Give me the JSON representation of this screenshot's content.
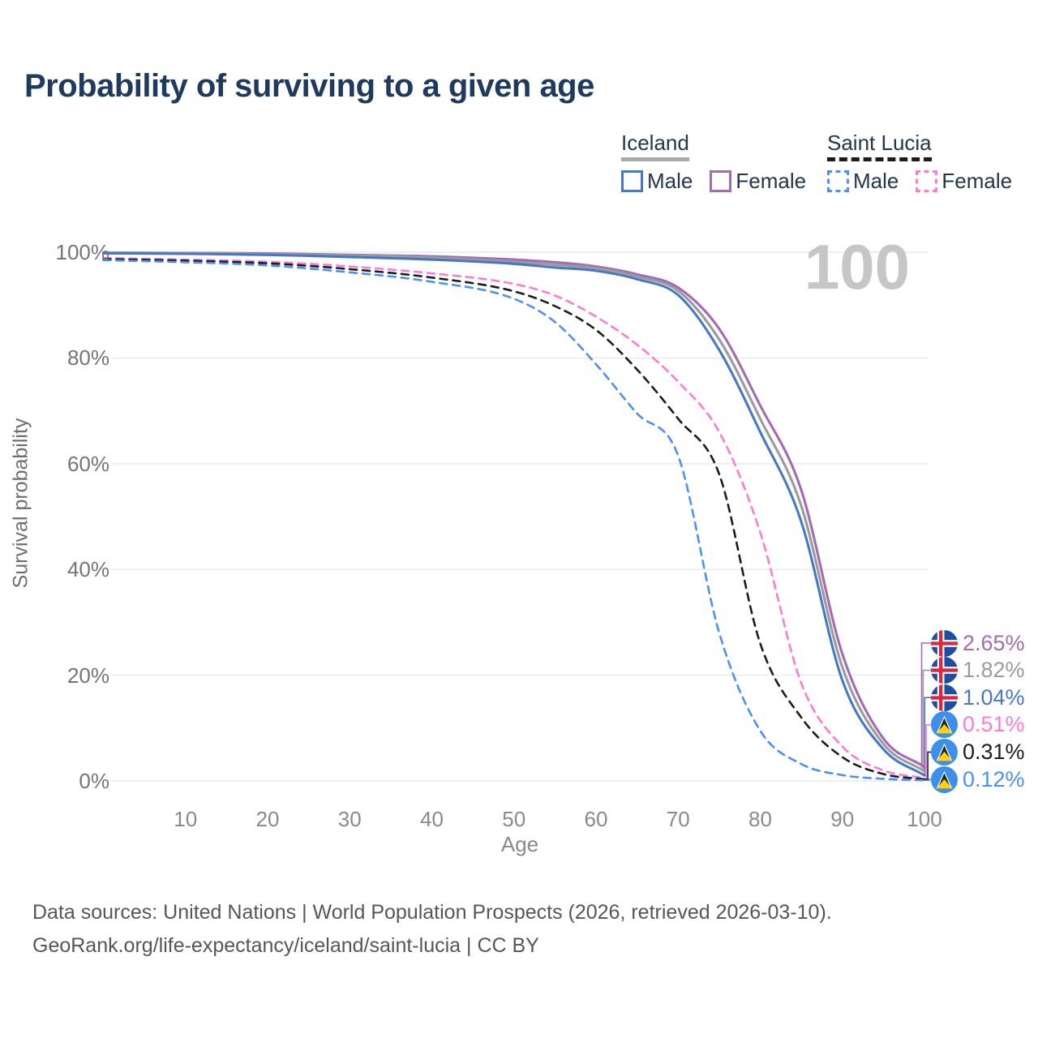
{
  "header": {
    "title": "Probability of surviving to a given age"
  },
  "legend": {
    "groups": [
      {
        "country": "Iceland",
        "style": "solid",
        "key_color": "#a9a9a9",
        "items": [
          {
            "label": "Male",
            "color": "#4678c8"
          },
          {
            "label": "Female",
            "color": "#a56bb2"
          }
        ]
      },
      {
        "country": "Saint Lucia",
        "style": "dashed",
        "key_color": "#1c1c1c",
        "items": [
          {
            "label": "Male",
            "color": "#4a90f5"
          },
          {
            "label": "Female",
            "color": "#ff7ad8"
          }
        ]
      }
    ]
  },
  "chart_data": {
    "type": "line",
    "title": "Probability of surviving to a given age",
    "xlabel": "Age",
    "ylabel": "Survival probability",
    "xlim": [
      0,
      100
    ],
    "ylim": [
      0,
      100
    ],
    "x_ticks": [
      10,
      20,
      30,
      40,
      50,
      60,
      70,
      80,
      90,
      100
    ],
    "y_tick_labels": [
      "0%",
      "20%",
      "40%",
      "60%",
      "80%",
      "100%"
    ],
    "grid": "horizontal",
    "legend_position": "top-right",
    "watermark": "100",
    "x": [
      0,
      10,
      20,
      30,
      40,
      50,
      55,
      60,
      65,
      70,
      75,
      80,
      85,
      90,
      95,
      100
    ],
    "series": [
      {
        "name": "Iceland Female",
        "country": "Iceland",
        "sex": "Female",
        "line": "solid",
        "color": "#a56bb2",
        "flag": "iceland",
        "end_value_label": "2.65%",
        "end_value": 2.65,
        "values": [
          99.9,
          99.85,
          99.75,
          99.5,
          99.2,
          98.6,
          98.1,
          97.3,
          95.8,
          93.3,
          85.5,
          71.0,
          55.0,
          24.0,
          8.0,
          2.65
        ]
      },
      {
        "name": "Iceland",
        "country": "Iceland",
        "sex": "Both sexes",
        "line": "solid",
        "color": "#9b9b9b",
        "flag": "iceland",
        "end_value_label": "1.82%",
        "end_value": 1.82,
        "values": [
          99.9,
          99.8,
          99.65,
          99.35,
          99.0,
          98.2,
          97.6,
          97.0,
          95.4,
          92.7,
          83.5,
          68.5,
          52.0,
          21.5,
          7.0,
          1.82
        ]
      },
      {
        "name": "Iceland Male",
        "country": "Iceland",
        "sex": "Male",
        "line": "solid",
        "color": "#4678c8",
        "flag": "iceland",
        "end_value_label": "1.04%",
        "end_value": 1.04,
        "values": [
          99.8,
          99.7,
          99.5,
          99.1,
          98.6,
          97.8,
          97.1,
          96.5,
          94.9,
          91.9,
          81.5,
          66.0,
          49.0,
          19.0,
          6.0,
          1.04
        ]
      },
      {
        "name": "Saint Lucia Female",
        "country": "Saint Lucia",
        "sex": "Female",
        "line": "dashed",
        "color": "#ff7ad8",
        "flag": "saint-lucia",
        "end_value_label": "0.51%",
        "end_value": 0.51,
        "values": [
          98.9,
          98.6,
          98.2,
          97.3,
          96.0,
          94.0,
          91.8,
          87.8,
          82.5,
          75.5,
          66.0,
          47.0,
          18.5,
          6.5,
          2.0,
          0.51
        ]
      },
      {
        "name": "Saint Lucia",
        "country": "Saint Lucia",
        "sex": "Both sexes",
        "line": "dashed",
        "color": "#1c1c1c",
        "flag": "saint-lucia",
        "end_value_label": "0.31%",
        "end_value": 0.31,
        "values": [
          98.7,
          98.4,
          97.9,
          96.8,
          95.2,
          92.6,
          89.8,
          85.3,
          77.8,
          68.5,
          58.0,
          26.0,
          12.0,
          4.5,
          1.3,
          0.31
        ]
      },
      {
        "name": "Saint Lucia Male",
        "country": "Saint Lucia",
        "sex": "Male",
        "line": "dashed",
        "color": "#4a90f5",
        "flag": "saint-lucia",
        "end_value_label": "0.12%",
        "end_value": 0.12,
        "values": [
          98.5,
          98.1,
          97.5,
          96.2,
          94.4,
          91.2,
          86.8,
          78.8,
          69.5,
          61.5,
          28.0,
          9.5,
          3.2,
          1.1,
          0.4,
          0.12
        ]
      }
    ]
  },
  "footer": {
    "line1": "Data sources: United Nations | World Population Prospects (2026, retrieved 2026-03-10).",
    "line2": "GeoRank.org/life-expectancy/iceland/saint-lucia | CC BY"
  },
  "colors": {
    "title": "#1e3a5e",
    "gridline": "#e9e9e9",
    "watermark": "#c6c6c6",
    "axis_text": "#8a8a8a",
    "legend_text": "#22364f",
    "footer_text": "#565656",
    "iceland_flag_blue": "#1c4fa1",
    "iceland_flag_red": "#d7283d",
    "saint_lucia_flag_blue": "#3e8fea",
    "saint_lucia_flag_yellow": "#fcd116"
  }
}
